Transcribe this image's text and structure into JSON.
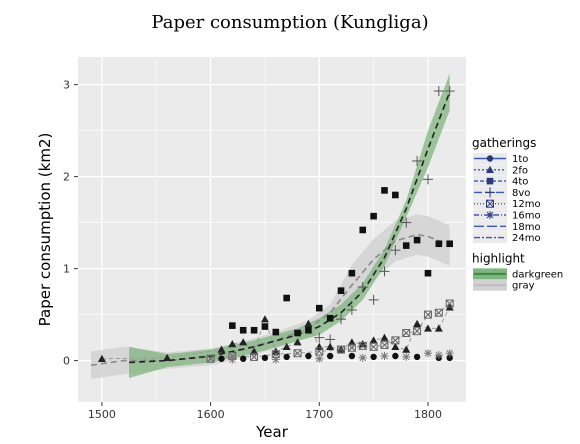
{
  "chart_data": {
    "type": "scatter",
    "title": "Paper consumption (Kungliga)",
    "xlabel": "Year",
    "ylabel": "Paper consumption (km2)",
    "xlim": [
      1478,
      1835
    ],
    "ylim": [
      -0.45,
      3.3
    ],
    "xticks": [
      "1500",
      "1600",
      "1700",
      "1800"
    ],
    "yticks": [
      "0",
      "1",
      "2",
      "3"
    ],
    "grid": true,
    "legend_position": "right",
    "colors": {
      "panel": "#ebebeb",
      "grid": "#ffffff",
      "darkgreen": "#3c8a3c",
      "darkgreen_band": "#7fb67f",
      "gray": "#bdbdbd",
      "gray_band": "#d2d2d2",
      "legend_line": "#3a57c4"
    },
    "legends": {
      "gatherings": {
        "title": "gatherings",
        "entries": [
          "1to",
          "2fo",
          "4to",
          "8vo",
          "12mo",
          "16mo",
          "18mo",
          "24mo"
        ]
      },
      "highlight": {
        "title": "highlight",
        "entries": [
          "darkgreen",
          "gray"
        ]
      }
    },
    "series": [
      {
        "name": "4to",
        "marker": "square",
        "highlight": "darkgreen",
        "x": [
          1620,
          1630,
          1640,
          1650,
          1660,
          1670,
          1680,
          1690,
          1700,
          1710,
          1720,
          1730,
          1740,
          1750,
          1760,
          1770,
          1780,
          1790,
          1800,
          1810,
          1820
        ],
        "y": [
          0.38,
          0.33,
          0.33,
          0.37,
          0.31,
          0.68,
          0.3,
          0.33,
          0.57,
          0.46,
          0.76,
          0.95,
          1.42,
          1.57,
          1.85,
          1.8,
          1.25,
          1.31,
          0.95,
          1.27,
          1.27
        ]
      },
      {
        "name": "8vo",
        "marker": "plus",
        "highlight": "darkgreen",
        "x": [
          1700,
          1710,
          1720,
          1730,
          1740,
          1750,
          1760,
          1770,
          1780,
          1790,
          1800,
          1810,
          1820
        ],
        "y": [
          0.25,
          0.23,
          0.45,
          0.55,
          0.8,
          0.66,
          0.97,
          1.2,
          1.5,
          2.17,
          1.97,
          2.93,
          2.93
        ]
      },
      {
        "name": "2fo",
        "marker": "triangle",
        "highlight": "gray",
        "x": [
          1500,
          1560,
          1610,
          1620,
          1630,
          1640,
          1650,
          1660,
          1670,
          1680,
          1690,
          1700,
          1710,
          1720,
          1730,
          1740,
          1750,
          1760,
          1770,
          1780,
          1790,
          1800,
          1810,
          1820
        ],
        "y": [
          0.02,
          0.03,
          0.12,
          0.18,
          0.2,
          0.1,
          0.45,
          0.1,
          0.15,
          0.2,
          0.4,
          0.15,
          0.15,
          0.12,
          0.2,
          0.18,
          0.22,
          0.25,
          0.15,
          0.12,
          0.4,
          0.35,
          0.35,
          0.58
        ]
      },
      {
        "name": "12mo",
        "marker": "boxed-x",
        "highlight": "gray",
        "x": [
          1600,
          1620,
          1640,
          1660,
          1680,
          1700,
          1720,
          1730,
          1740,
          1750,
          1760,
          1770,
          1780,
          1790,
          1800,
          1810,
          1820
        ],
        "y": [
          0.02,
          0.05,
          0.04,
          0.07,
          0.08,
          0.1,
          0.12,
          0.14,
          0.16,
          0.15,
          0.17,
          0.22,
          0.3,
          0.32,
          0.5,
          0.52,
          0.62
        ]
      },
      {
        "name": "1to",
        "marker": "circle",
        "highlight": "gray",
        "x": [
          1610,
          1630,
          1650,
          1670,
          1690,
          1710,
          1730,
          1750,
          1770,
          1790,
          1810,
          1820
        ],
        "y": [
          0.02,
          0.02,
          0.03,
          0.04,
          0.05,
          0.05,
          0.05,
          0.04,
          0.05,
          0.04,
          0.03,
          0.03
        ]
      },
      {
        "name": "16mo",
        "marker": "asterisk",
        "highlight": "gray",
        "x": [
          1620,
          1660,
          1700,
          1740,
          1760,
          1780,
          1800,
          1810,
          1820
        ],
        "y": [
          0.01,
          0.01,
          0.02,
          0.03,
          0.05,
          0.04,
          0.08,
          0.06,
          0.08
        ]
      },
      {
        "name": "gray smooth",
        "marker": "none",
        "highlight": "gray",
        "x": [
          1490,
          1520,
          1560,
          1600,
          1630,
          1660,
          1690,
          1710,
          1730,
          1750,
          1770,
          1790,
          1800,
          1820
        ],
        "y": [
          -0.05,
          0.0,
          0.0,
          0.04,
          0.12,
          0.22,
          0.35,
          0.52,
          0.82,
          1.1,
          1.3,
          1.37,
          1.35,
          1.25
        ]
      },
      {
        "name": "darkgreen smooth",
        "marker": "none",
        "highlight": "darkgreen",
        "x": [
          1525,
          1560,
          1600,
          1640,
          1680,
          1700,
          1720,
          1740,
          1760,
          1780,
          1800,
          1820
        ],
        "y": [
          -0.02,
          0.0,
          0.05,
          0.15,
          0.28,
          0.37,
          0.52,
          0.75,
          1.12,
          1.65,
          2.3,
          2.92
        ]
      }
    ]
  }
}
